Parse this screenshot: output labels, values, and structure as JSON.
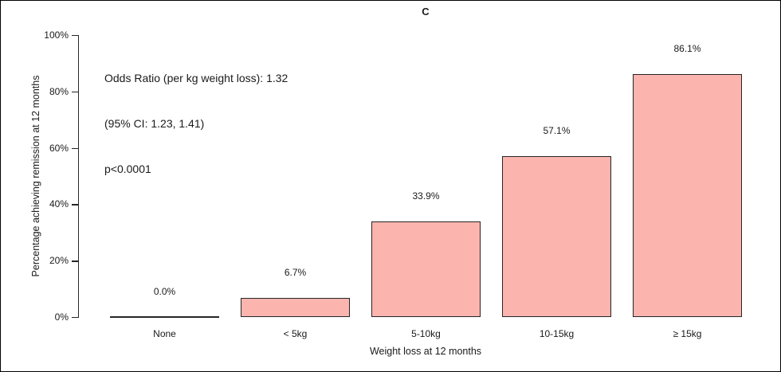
{
  "chart_data": {
    "type": "bar",
    "title": "C",
    "categories": [
      "None",
      "< 5kg",
      "5-10kg",
      "10-15kg",
      "≥ 15kg"
    ],
    "values": [
      0.0,
      6.7,
      33.9,
      57.1,
      86.1
    ],
    "value_labels": [
      "0.0%",
      "6.7%",
      "33.9%",
      "57.1%",
      "86.1%"
    ],
    "xlabel": "Weight loss at 12 months",
    "ylabel": "Percentage achieving remission at 12 months",
    "ylim": [
      0,
      100
    ],
    "yticks": [
      0,
      20,
      40,
      60,
      80,
      100
    ],
    "ytick_labels": [
      "0%",
      "20%",
      "40%",
      "60%",
      "80%",
      "100%"
    ],
    "grid": false,
    "legend": "none",
    "bar_fill_color": "#FBB4AE",
    "bar_border_color": "#262626",
    "annotation": {
      "lines": [
        "Odds Ratio (per kg weight loss): 1.32",
        "(95% CI: 1.23, 1.41)",
        "p<0.0001"
      ]
    }
  }
}
